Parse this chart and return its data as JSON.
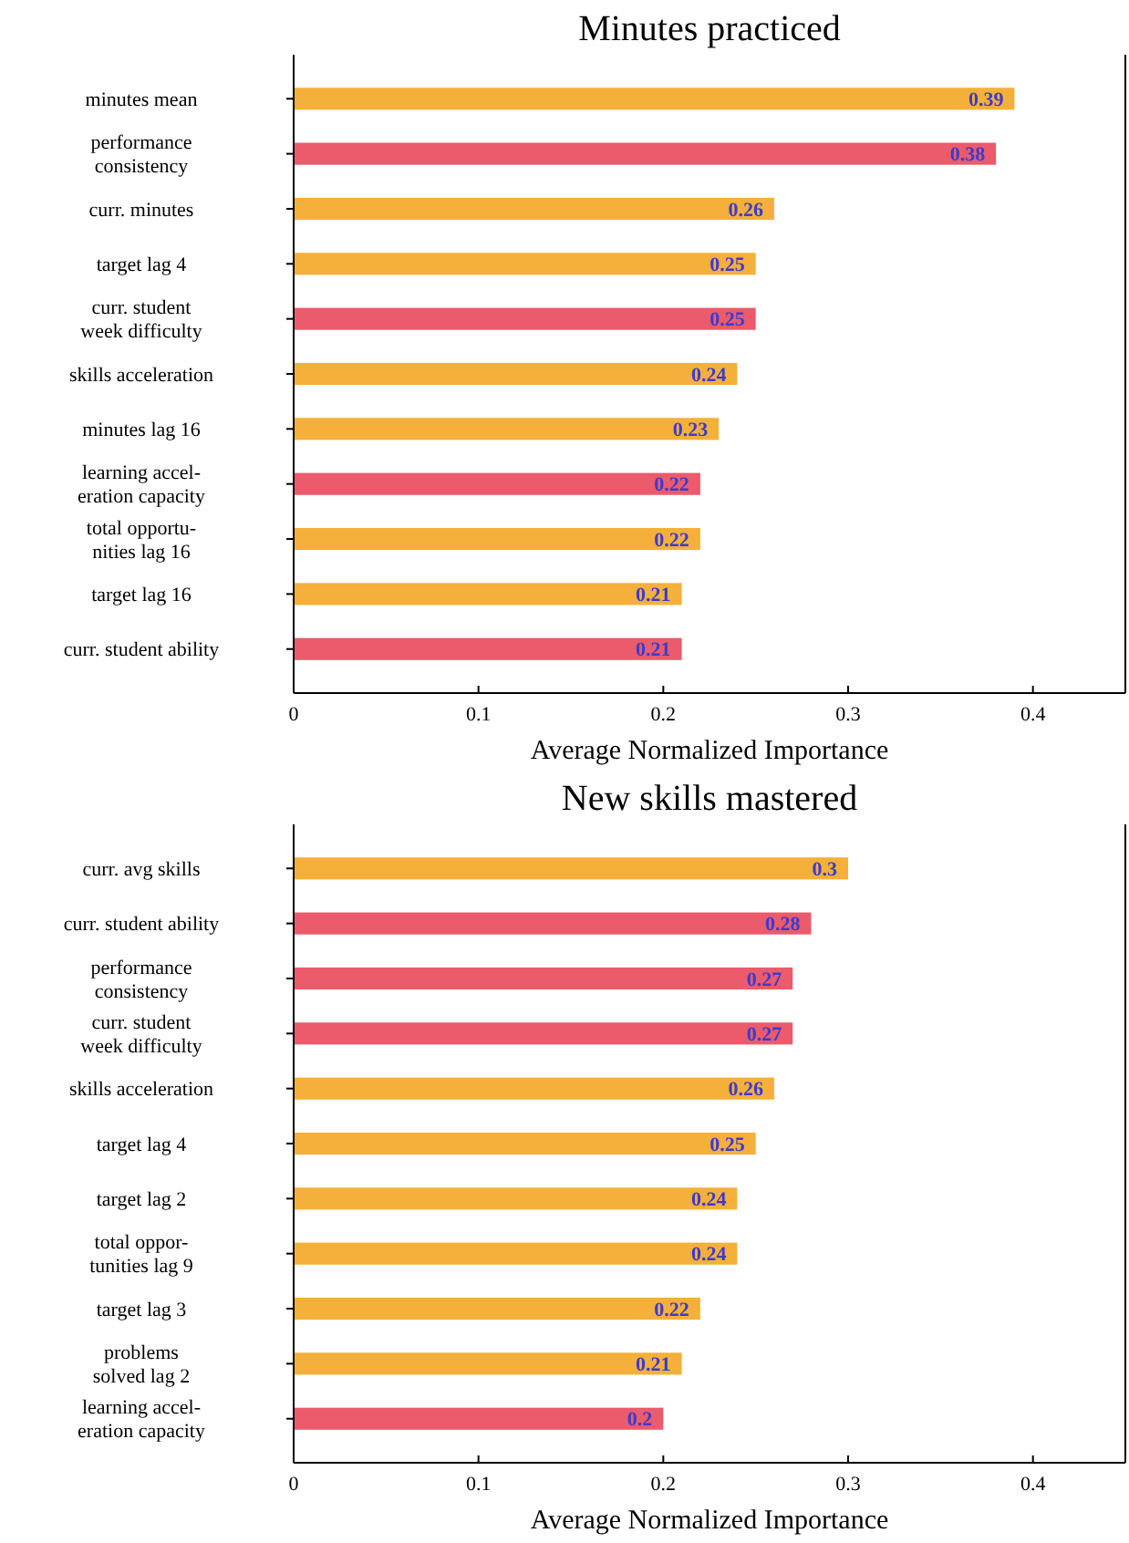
{
  "chart_data": [
    {
      "type": "bar",
      "orientation": "horizontal",
      "title": "Minutes practiced",
      "xlabel": "Average Normalized Importance",
      "categories": [
        "minutes mean",
        "performance\nconsistency",
        "curr. minutes",
        "target lag 4",
        "curr. student\nweek difficulty",
        "skills acceleration",
        "minutes lag 16",
        "learning accel-\neration capacity",
        "total opportu-\nnities lag 16",
        "target lag 16",
        "curr. student ability"
      ],
      "values": [
        0.39,
        0.38,
        0.26,
        0.25,
        0.25,
        0.24,
        0.23,
        0.22,
        0.22,
        0.21,
        0.21
      ],
      "colors": [
        "#f4b03a",
        "#eb5b6b",
        "#f4b03a",
        "#f4b03a",
        "#eb5b6b",
        "#f4b03a",
        "#f4b03a",
        "#eb5b6b",
        "#f4b03a",
        "#f4b03a",
        "#eb5b6b"
      ],
      "xlim": [
        0,
        0.45
      ],
      "xticks": [
        0,
        0.1,
        0.2,
        0.3,
        0.4
      ],
      "data_labels": true,
      "grid": false
    },
    {
      "type": "bar",
      "orientation": "horizontal",
      "title": "New skills mastered",
      "xlabel": "Average Normalized Importance",
      "categories": [
        "curr. avg skills",
        "curr. student ability",
        "performance\nconsistency",
        "curr. student\nweek difficulty",
        "skills acceleration",
        "target lag 4",
        "target lag 2",
        "total oppor-\ntunities lag 9",
        "target lag 3",
        "problems\nsolved lag 2",
        "learning accel-\neration capacity"
      ],
      "values": [
        0.3,
        0.28,
        0.27,
        0.27,
        0.26,
        0.25,
        0.24,
        0.24,
        0.22,
        0.21,
        0.2
      ],
      "colors": [
        "#f4b03a",
        "#eb5b6b",
        "#eb5b6b",
        "#eb5b6b",
        "#f4b03a",
        "#f4b03a",
        "#f4b03a",
        "#f4b03a",
        "#f4b03a",
        "#f4b03a",
        "#eb5b6b"
      ],
      "xlim": [
        0,
        0.45
      ],
      "xticks": [
        0,
        0.1,
        0.2,
        0.3,
        0.4
      ],
      "data_labels": true,
      "grid": false
    }
  ]
}
